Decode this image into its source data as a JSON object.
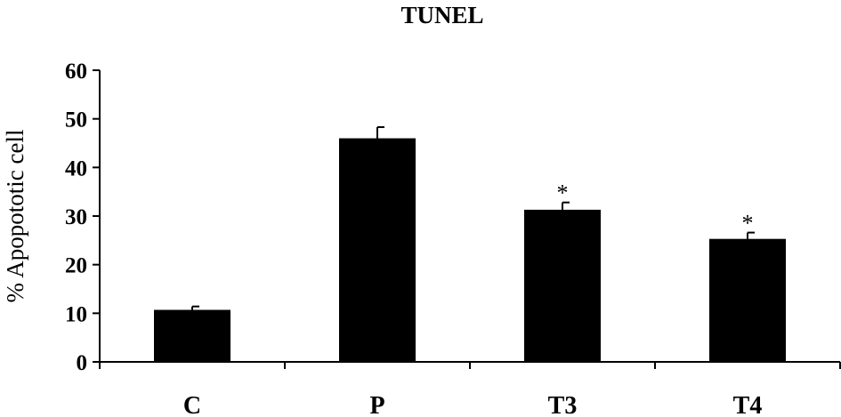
{
  "chart_data": {
    "type": "bar",
    "title": "TUNEL",
    "xlabel": "",
    "ylabel": "% Apopototic cell",
    "categories": [
      "C",
      "P",
      "T3",
      "T4"
    ],
    "values": [
      10.7,
      46,
      31.3,
      25.3
    ],
    "errors": [
      0.7,
      2.3,
      1.5,
      1.3
    ],
    "annotations": [
      "",
      "",
      "*",
      "*"
    ],
    "ylim": [
      0,
      60
    ],
    "yticks": [
      0,
      10,
      20,
      30,
      40,
      50,
      60
    ],
    "grid": false,
    "legend": "none",
    "bar_color": "#000000"
  }
}
